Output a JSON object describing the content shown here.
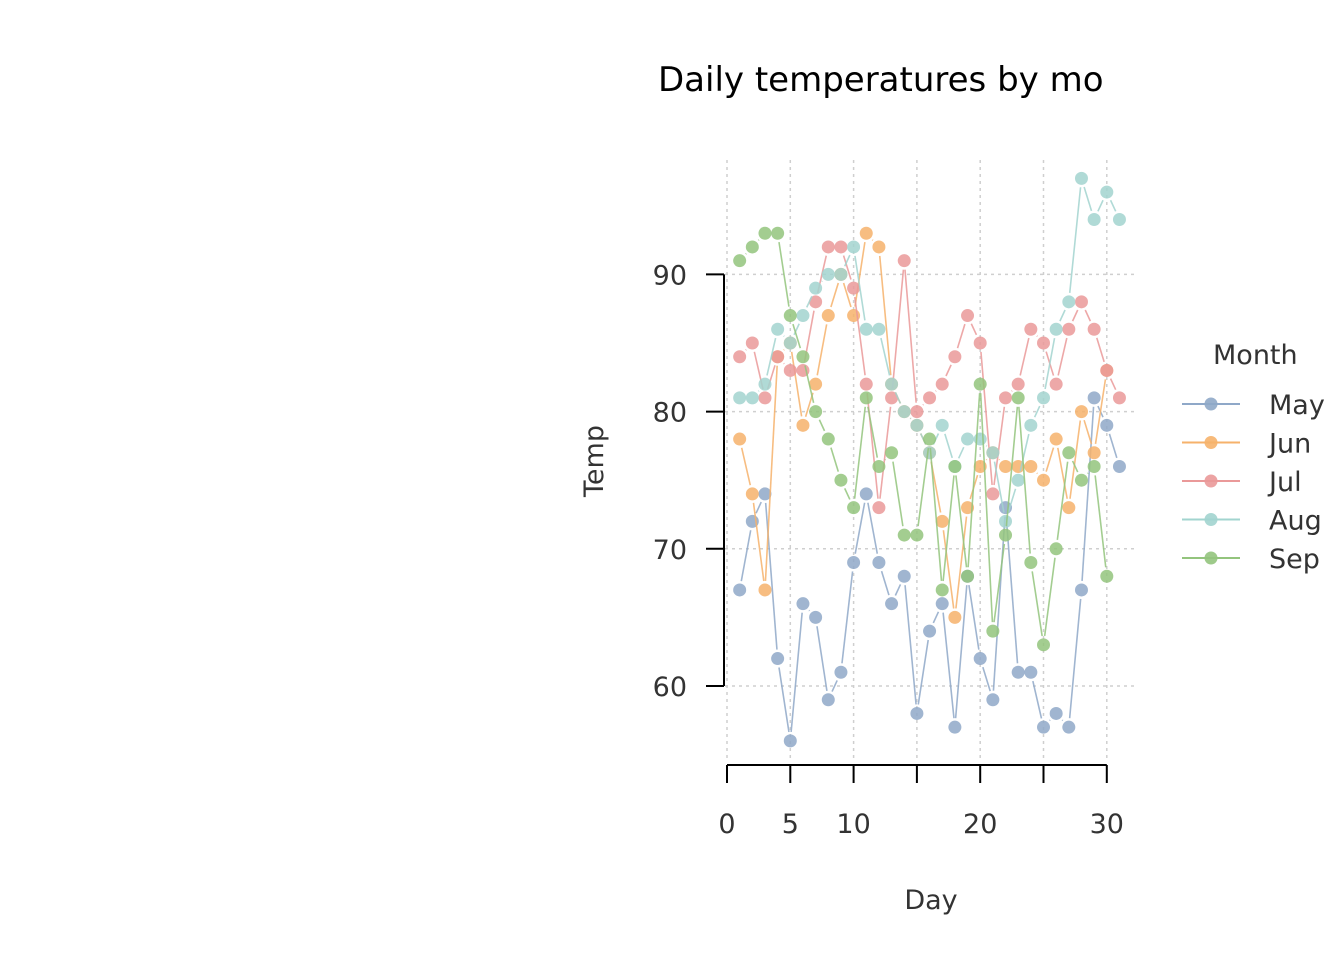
{
  "chart_data": {
    "type": "line",
    "title": "Daily temperatures by mo",
    "xlabel": "Day",
    "ylabel": "Temp",
    "xlim": [
      0,
      32
    ],
    "ylim": [
      54,
      98
    ],
    "xticks": [
      0,
      5,
      10,
      20,
      30
    ],
    "yticks": [
      60,
      70,
      80,
      90
    ],
    "grid": true,
    "legend": {
      "title": "Month",
      "position": "right"
    },
    "x": [
      1,
      2,
      3,
      4,
      5,
      6,
      7,
      8,
      9,
      10,
      11,
      12,
      13,
      14,
      15,
      16,
      17,
      18,
      19,
      20,
      21,
      22,
      23,
      24,
      25,
      26,
      27,
      28,
      29,
      30,
      31
    ],
    "series": [
      {
        "name": "May",
        "color": "#8fa8c8",
        "values": [
          67,
          72,
          74,
          62,
          56,
          66,
          65,
          59,
          61,
          69,
          74,
          69,
          66,
          68,
          58,
          64,
          66,
          57,
          68,
          62,
          59,
          73,
          61,
          61,
          57,
          58,
          57,
          67,
          81,
          79,
          76
        ]
      },
      {
        "name": "Jun",
        "color": "#f6b26b",
        "values": [
          78,
          74,
          67,
          84,
          85,
          79,
          82,
          87,
          90,
          87,
          93,
          92,
          82,
          80,
          79,
          77,
          72,
          65,
          73,
          76,
          77,
          76,
          76,
          76,
          75,
          78,
          73,
          80,
          77,
          83,
          null
        ]
      },
      {
        "name": "Jul",
        "color": "#ea9999",
        "values": [
          84,
          85,
          81,
          84,
          83,
          83,
          88,
          92,
          92,
          89,
          82,
          73,
          81,
          91,
          80,
          81,
          82,
          84,
          87,
          85,
          74,
          81,
          82,
          86,
          85,
          82,
          86,
          88,
          86,
          83,
          81
        ]
      },
      {
        "name": "Aug",
        "color": "#a2d4cf",
        "values": [
          81,
          81,
          82,
          86,
          85,
          87,
          89,
          90,
          90,
          92,
          86,
          86,
          82,
          80,
          79,
          77,
          79,
          76,
          78,
          78,
          77,
          72,
          75,
          79,
          81,
          86,
          88,
          97,
          94,
          96,
          94
        ]
      },
      {
        "name": "Sep",
        "color": "#93c47d",
        "values": [
          91,
          92,
          93,
          93,
          87,
          84,
          80,
          78,
          75,
          73,
          81,
          76,
          77,
          71,
          71,
          78,
          67,
          76,
          68,
          82,
          64,
          71,
          81,
          69,
          63,
          70,
          77,
          75,
          76,
          68,
          null
        ]
      }
    ]
  }
}
